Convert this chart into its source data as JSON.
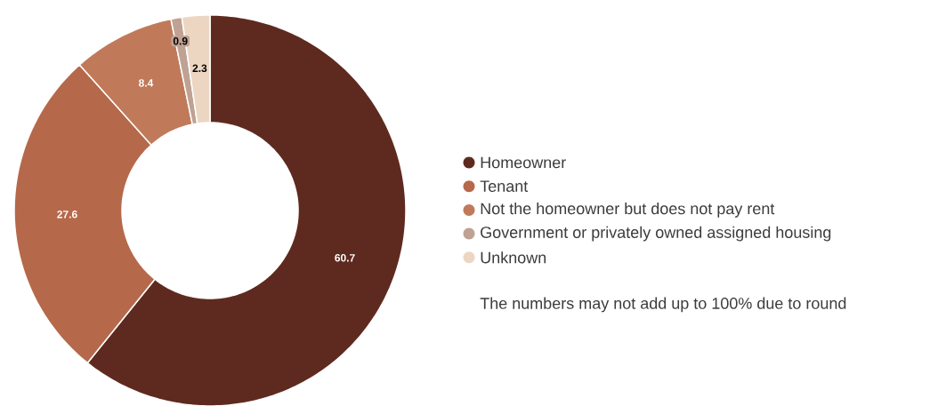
{
  "chart_data": {
    "type": "donut",
    "categories": [
      "Homeowner",
      "Tenant",
      "Not the homeowner but does not pay rent",
      "Government or privately owned assigned housing",
      "Unknown"
    ],
    "values": [
      60.7,
      27.6,
      8.4,
      0.9,
      2.3
    ],
    "colors": [
      "#5e2a1f",
      "#b5694a",
      "#c07a5a",
      "#bfa293",
      "#ecd6c2"
    ],
    "data_labels": true,
    "legend": "right",
    "annotations": [
      "The numbers may not add up to 100% due to round"
    ]
  }
}
